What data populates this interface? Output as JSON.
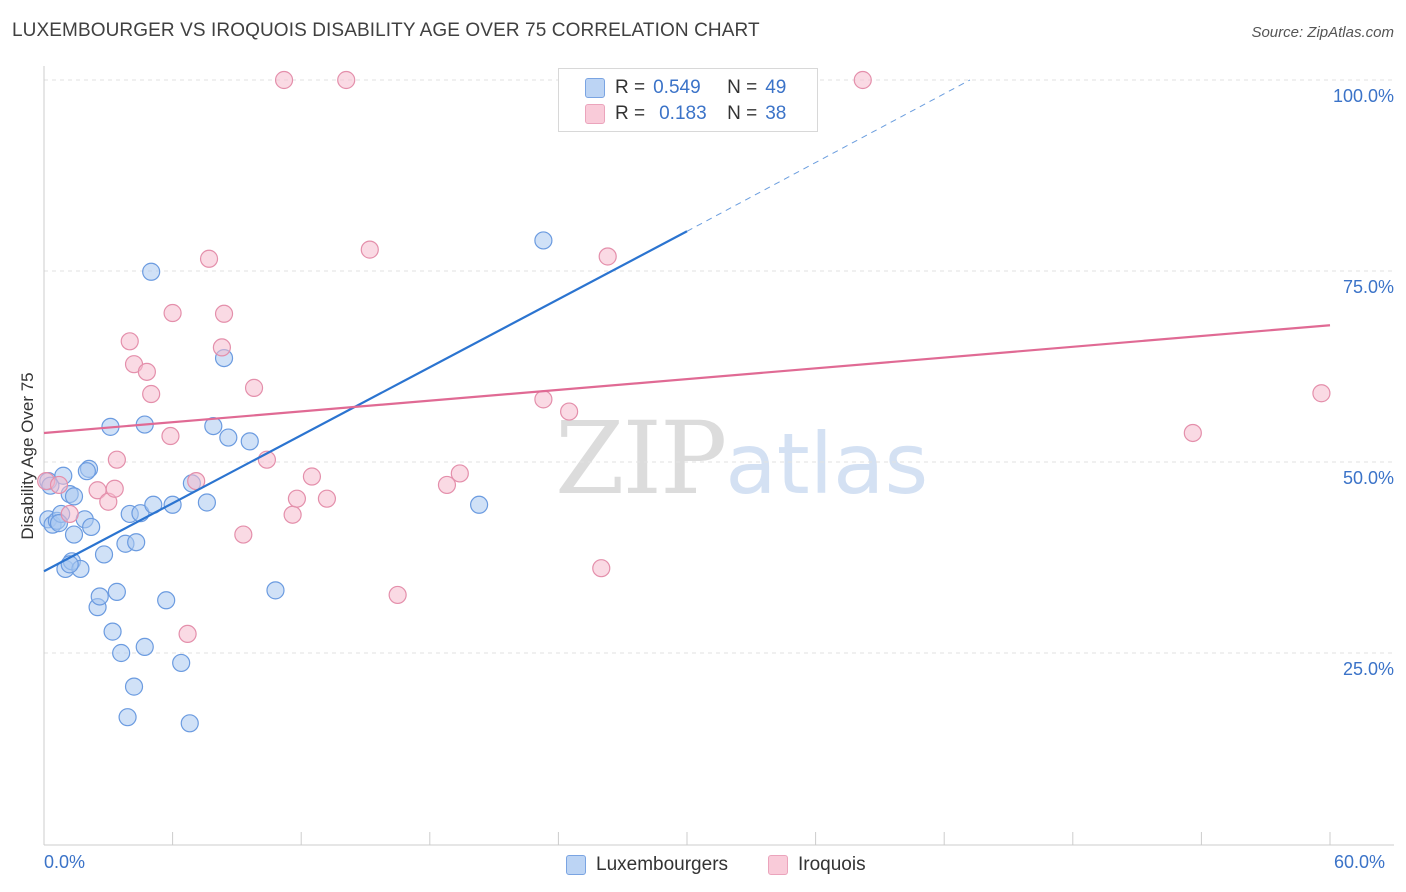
{
  "title": "LUXEMBOURGER VS IROQUOIS DISABILITY AGE OVER 75 CORRELATION CHART",
  "source": "Source: ZipAtlas.com",
  "watermark": {
    "zip": "ZIP",
    "atlas": "atlas"
  },
  "legend": {
    "r_label": "R =",
    "n_label": "N =",
    "series": [
      {
        "r": "0.549",
        "n": "49"
      },
      {
        "r": "0.183",
        "n": "38"
      }
    ]
  },
  "bottom_legend": [
    "Luxembourgers",
    "Iroquois"
  ],
  "chart_data": {
    "type": "scatter",
    "title": "LUXEMBOURGER VS IROQUOIS DISABILITY AGE OVER 75 CORRELATION CHART",
    "xlabel": "",
    "ylabel": "Disability Age Over 75",
    "xlim": [
      0,
      60
    ],
    "ylim": [
      0,
      105
    ],
    "x_tick_labels": [
      "0.0%",
      "60.0%"
    ],
    "y_tick_labels": [
      "25.0%",
      "50.0%",
      "75.0%",
      "100.0%"
    ],
    "y_ticks": [
      25,
      50,
      75,
      100
    ],
    "grid": true,
    "colors": {
      "Luxembourgers": {
        "fill": "#aac8f0",
        "stroke": "#6b9be0",
        "line": "#2b74d0"
      },
      "Iroquois": {
        "fill": "#f6bccd",
        "stroke": "#e48fab",
        "line": "#e06a94"
      }
    },
    "series": [
      {
        "name": "Luxembourgers",
        "r": 0.549,
        "n": 49,
        "trend": {
          "x0": 0,
          "y0": 35.7,
          "x1": 30,
          "y1": 80.2,
          "dash_to_x": 43.2,
          "dash_to_y": 100
        },
        "points": [
          [
            0.2,
            47.5
          ],
          [
            0.2,
            42.5
          ],
          [
            0.4,
            41.8
          ],
          [
            0.6,
            42.3
          ],
          [
            0.8,
            43.2
          ],
          [
            0.9,
            48.2
          ],
          [
            1.0,
            36.0
          ],
          [
            1.2,
            45.8
          ],
          [
            1.3,
            37.0
          ],
          [
            1.4,
            40.5
          ],
          [
            1.7,
            36.0
          ],
          [
            1.9,
            42.5
          ],
          [
            2.1,
            49.1
          ],
          [
            2.2,
            41.5
          ],
          [
            2.5,
            31.0
          ],
          [
            2.6,
            32.4
          ],
          [
            2.8,
            37.9
          ],
          [
            3.1,
            54.6
          ],
          [
            3.2,
            27.8
          ],
          [
            3.4,
            33.0
          ],
          [
            3.6,
            25.0
          ],
          [
            3.8,
            39.3
          ],
          [
            3.9,
            16.6
          ],
          [
            4.0,
            43.2
          ],
          [
            4.2,
            20.6
          ],
          [
            4.3,
            39.5
          ],
          [
            4.5,
            43.3
          ],
          [
            4.7,
            54.9
          ],
          [
            4.7,
            25.8
          ],
          [
            5.0,
            74.9
          ],
          [
            5.1,
            44.4
          ],
          [
            5.7,
            31.9
          ],
          [
            6.0,
            44.4
          ],
          [
            6.4,
            23.7
          ],
          [
            6.8,
            15.8
          ],
          [
            6.9,
            47.2
          ],
          [
            7.6,
            44.7
          ],
          [
            7.9,
            54.7
          ],
          [
            8.4,
            63.6
          ],
          [
            8.6,
            53.2
          ],
          [
            9.6,
            52.7
          ],
          [
            10.8,
            33.2
          ],
          [
            20.3,
            44.4
          ],
          [
            23.3,
            79.0
          ],
          [
            1.4,
            45.5
          ],
          [
            2.0,
            48.8
          ],
          [
            0.7,
            42.0
          ],
          [
            1.2,
            36.6
          ],
          [
            0.3,
            46.9
          ]
        ]
      },
      {
        "name": "Iroquois",
        "r": 0.183,
        "n": 38,
        "trend": {
          "x0": 0,
          "y0": 53.8,
          "x1": 60,
          "y1": 67.9
        },
        "points": [
          [
            0.1,
            47.5
          ],
          [
            0.7,
            47.0
          ],
          [
            1.2,
            43.2
          ],
          [
            2.5,
            46.3
          ],
          [
            3.0,
            44.8
          ],
          [
            3.3,
            46.5
          ],
          [
            3.4,
            50.3
          ],
          [
            4.0,
            65.8
          ],
          [
            4.2,
            62.8
          ],
          [
            4.8,
            61.8
          ],
          [
            5.0,
            58.9
          ],
          [
            5.9,
            53.4
          ],
          [
            6.0,
            69.5
          ],
          [
            6.7,
            27.5
          ],
          [
            7.1,
            47.5
          ],
          [
            7.7,
            76.6
          ],
          [
            8.3,
            65.0
          ],
          [
            8.4,
            69.4
          ],
          [
            9.3,
            40.5
          ],
          [
            9.8,
            59.7
          ],
          [
            10.4,
            50.3
          ],
          [
            11.2,
            100.0
          ],
          [
            11.6,
            43.1
          ],
          [
            11.8,
            45.2
          ],
          [
            12.5,
            48.1
          ],
          [
            13.2,
            45.2
          ],
          [
            14.1,
            100.0
          ],
          [
            15.2,
            77.8
          ],
          [
            16.5,
            32.6
          ],
          [
            18.8,
            47.0
          ],
          [
            19.4,
            48.5
          ],
          [
            23.3,
            58.2
          ],
          [
            24.5,
            56.6
          ],
          [
            26.0,
            36.1
          ],
          [
            26.3,
            76.9
          ],
          [
            38.2,
            100.0
          ],
          [
            53.6,
            53.8
          ],
          [
            59.6,
            59.0
          ]
        ]
      }
    ]
  }
}
